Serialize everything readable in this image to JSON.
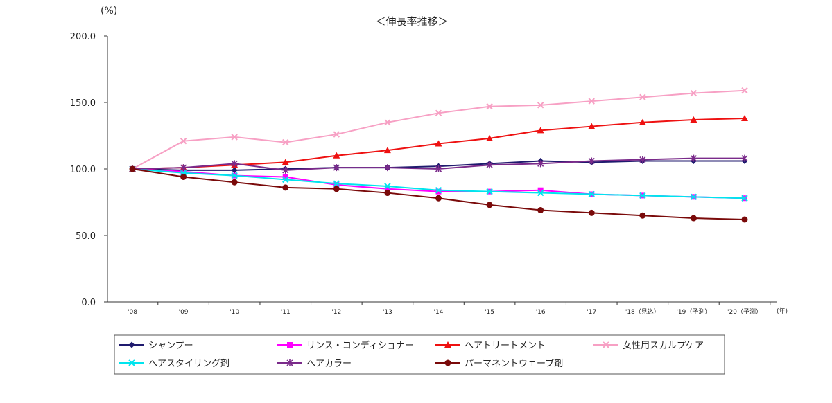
{
  "chart_data": {
    "type": "line",
    "title": "＜伸長率推移＞",
    "ylabel": "(%)",
    "xlabel": "(年)",
    "ylim": [
      0,
      200
    ],
    "ytick_labels": [
      "0.0",
      "50.0",
      "100.0",
      "150.0",
      "200.0"
    ],
    "yticks": [
      0,
      50,
      100,
      150,
      200
    ],
    "categories": [
      "'08",
      "'09",
      "'10",
      "'11",
      "'12",
      "'13",
      "'14",
      "'15",
      "'16",
      "'17",
      "'18（見込）",
      "'19（予測）",
      "'20（予測）"
    ],
    "grid": false,
    "legend_position": "bottom",
    "series": [
      {
        "name": "シャンプー",
        "color": "#1f1a6e",
        "marker": "diamond",
        "values": [
          100,
          99,
          99,
          100,
          101,
          101,
          102,
          104,
          106,
          105,
          106,
          106,
          106
        ]
      },
      {
        "name": "リンス・コンディショナー",
        "color": "#ff00ff",
        "marker": "square",
        "values": [
          100,
          98,
          95,
          94,
          88,
          85,
          83,
          83,
          84,
          81,
          80,
          79,
          78
        ]
      },
      {
        "name": "ヘアトリートメント",
        "color": "#ee1111",
        "marker": "triangle",
        "values": [
          100,
          101,
          103,
          105,
          110,
          114,
          119,
          123,
          129,
          132,
          135,
          137,
          138
        ]
      },
      {
        "name": "女性用スカルプケア",
        "color": "#f7a0c4",
        "marker": "x",
        "values": [
          100,
          121,
          124,
          120,
          126,
          135,
          142,
          147,
          148,
          151,
          154,
          157,
          159
        ]
      },
      {
        "name": "ヘアスタイリング剤",
        "color": "#00e5ee",
        "marker": "x",
        "values": [
          100,
          97,
          95,
          92,
          89,
          87,
          84,
          83,
          82,
          81,
          80,
          79,
          78
        ]
      },
      {
        "name": "ヘアカラー",
        "color": "#7a2a8a",
        "marker": "star",
        "values": [
          100,
          101,
          104,
          99,
          101,
          101,
          100,
          103,
          104,
          106,
          107,
          108,
          108
        ]
      },
      {
        "name": "パーマネントウェーブ剤",
        "color": "#7a0a0a",
        "marker": "circle",
        "values": [
          100,
          94,
          90,
          86,
          85,
          82,
          78,
          73,
          69,
          67,
          65,
          63,
          62
        ]
      }
    ]
  }
}
